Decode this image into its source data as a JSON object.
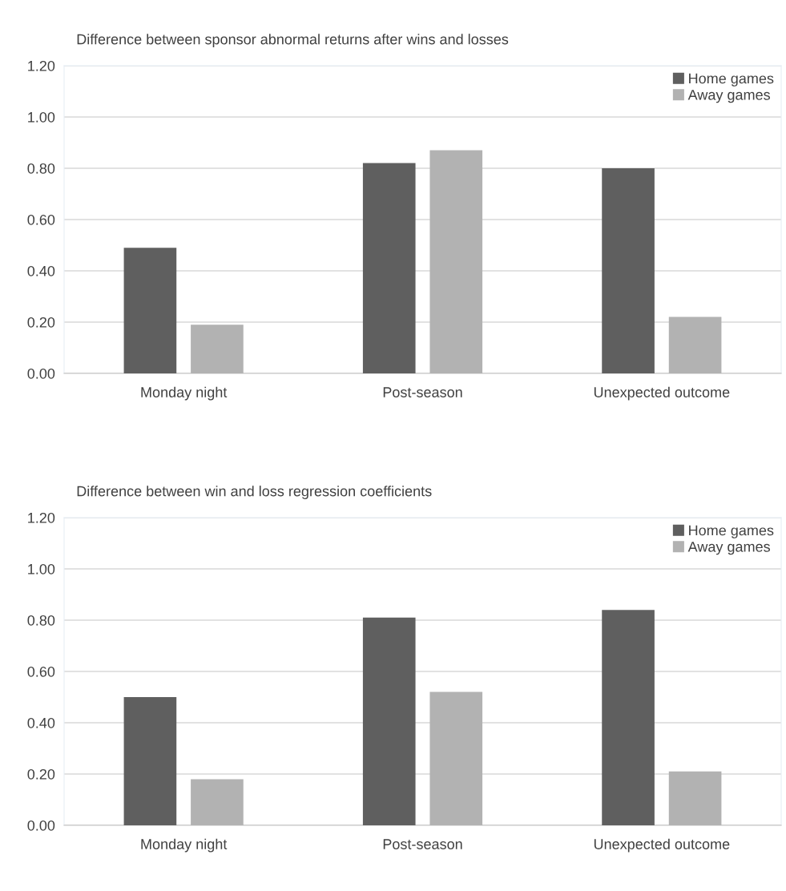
{
  "chart_data": [
    {
      "type": "bar",
      "title": "Difference between sponsor abnormal returns after wins and losses",
      "categories": [
        "Monday night",
        "Post-season",
        "Unexpected outcome"
      ],
      "series": [
        {
          "name": "Home games",
          "color": "#5f5f5f",
          "values": [
            0.49,
            0.82,
            0.8
          ]
        },
        {
          "name": "Away games",
          "color": "#b2b2b2",
          "values": [
            0.19,
            0.87,
            0.22
          ]
        }
      ],
      "ylim": [
        0,
        1.2
      ],
      "yticks": [
        {
          "value": 0,
          "label": "0.00"
        },
        {
          "value": 0.2,
          "label": "0.20"
        },
        {
          "value": 0.4,
          "label": "0.40"
        },
        {
          "value": 0.6,
          "label": "0.60"
        },
        {
          "value": 0.8,
          "label": "0.80"
        },
        {
          "value": 1.0,
          "label": "1.00"
        },
        {
          "value": 1.2,
          "label": "1.20"
        }
      ],
      "grid": "y",
      "legend": "top right"
    },
    {
      "type": "bar",
      "title": "Difference between win and loss regression coefficients",
      "categories": [
        "Monday night",
        "Post-season",
        "Unexpected outcome"
      ],
      "series": [
        {
          "name": "Home games",
          "color": "#5f5f5f",
          "values": [
            0.5,
            0.81,
            0.84
          ]
        },
        {
          "name": "Away games",
          "color": "#b2b2b2",
          "values": [
            0.18,
            0.52,
            0.21
          ]
        }
      ],
      "ylim": [
        0,
        1.2
      ],
      "yticks": [
        {
          "value": 0,
          "label": "0.00"
        },
        {
          "value": 0.2,
          "label": "0.20"
        },
        {
          "value": 0.4,
          "label": "0.40"
        },
        {
          "value": 0.6,
          "label": "0.60"
        },
        {
          "value": 0.8,
          "label": "0.80"
        },
        {
          "value": 1.0,
          "label": "1.00"
        },
        {
          "value": 1.2,
          "label": "1.20"
        }
      ],
      "grid": "y",
      "legend": "top right"
    }
  ]
}
